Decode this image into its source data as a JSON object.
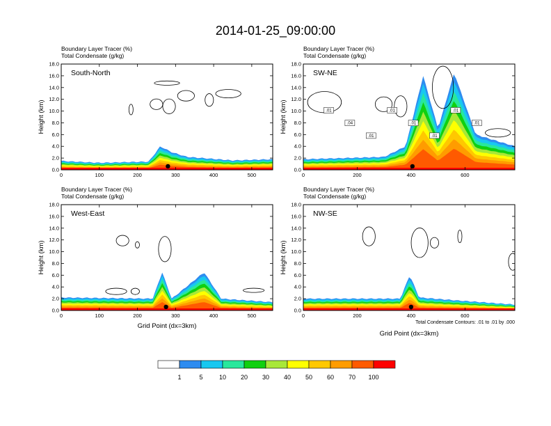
{
  "title": "2014-01-25_09:00:00",
  "panel_subtitles": [
    "Boundary Layer Tracer   (%)",
    "Total Condensate   (g/kg)"
  ],
  "ylabel": "Height (km)",
  "xlabel": "Grid Point (dx=3km)",
  "contour_note": "Total Condensate Contours: .01 to .01 by .000",
  "colorbar": {
    "labels": [
      "1",
      "5",
      "10",
      "20",
      "30",
      "40",
      "50",
      "60",
      "70",
      "100"
    ],
    "colors": [
      "#ffffff",
      "#2e8cf0",
      "#18c8f0",
      "#28e89c",
      "#10d010",
      "#a8e838",
      "#ffff00",
      "#ffc800",
      "#ff9c00",
      "#ff5a00",
      "#ff0000"
    ]
  },
  "chart_data": [
    {
      "type": "heatmap",
      "panel": "South-North",
      "title": "South-North",
      "ylim": [
        0,
        18
      ],
      "xlim": [
        0,
        555
      ],
      "xticks": [
        0,
        100,
        200,
        300,
        400,
        500
      ],
      "yticks": [
        "0.0",
        "2.0",
        "4.0",
        "6.0",
        "8.0",
        "10.0",
        "12.0",
        "14.0",
        "16.0",
        "18.0"
      ],
      "marker_x": 280,
      "tracer_profile": [
        {
          "x": 0,
          "top_km": 1.5
        },
        {
          "x": 100,
          "top_km": 1.2
        },
        {
          "x": 230,
          "top_km": 1.4
        },
        {
          "x": 260,
          "top_km": 4.0
        },
        {
          "x": 290,
          "top_km": 3.0
        },
        {
          "x": 330,
          "top_km": 2.2
        },
        {
          "x": 450,
          "top_km": 1.6
        },
        {
          "x": 555,
          "top_km": 1.8
        }
      ],
      "contour_labels": []
    },
    {
      "type": "heatmap",
      "panel": "SW-NE",
      "title": "SW-NE",
      "ylim": [
        0,
        18
      ],
      "xlim": [
        0,
        785
      ],
      "xticks": [
        0,
        200,
        400,
        600
      ],
      "yticks": [
        "0.0",
        "2.0",
        "4.0",
        "6.0",
        "8.0",
        "10.0",
        "12.0",
        "14.0",
        "16.0",
        "18.0"
      ],
      "marker_x": 405,
      "tracer_profile": [
        {
          "x": 0,
          "top_km": 1.8
        },
        {
          "x": 300,
          "top_km": 2.2
        },
        {
          "x": 380,
          "top_km": 4.0
        },
        {
          "x": 445,
          "top_km": 16.0
        },
        {
          "x": 500,
          "top_km": 7.0
        },
        {
          "x": 560,
          "top_km": 16.5
        },
        {
          "x": 640,
          "top_km": 6.0
        },
        {
          "x": 785,
          "top_km": 4.0
        }
      ],
      "contour_labels": [
        ".01",
        ".04",
        ".01",
        ".01",
        ".01",
        ".01",
        ".01",
        ".01"
      ]
    },
    {
      "type": "heatmap",
      "panel": "West-East",
      "title": "West-East",
      "ylim": [
        0,
        18
      ],
      "xlim": [
        0,
        555
      ],
      "xticks": [
        0,
        100,
        200,
        300,
        400,
        500
      ],
      "yticks": [
        "0.0",
        "2.0",
        "4.0",
        "6.0",
        "8.0",
        "10.0",
        "12.0",
        "14.0",
        "16.0",
        "18.0"
      ],
      "marker_x": 275,
      "tracer_profile": [
        {
          "x": 0,
          "top_km": 2.2
        },
        {
          "x": 240,
          "top_km": 2.0
        },
        {
          "x": 265,
          "top_km": 6.5
        },
        {
          "x": 290,
          "top_km": 2.0
        },
        {
          "x": 375,
          "top_km": 6.5
        },
        {
          "x": 420,
          "top_km": 2.0
        },
        {
          "x": 555,
          "top_km": 1.4
        }
      ],
      "contour_labels": []
    },
    {
      "type": "heatmap",
      "panel": "NW-SE",
      "title": "NW-SE",
      "ylim": [
        0,
        18
      ],
      "xlim": [
        0,
        785
      ],
      "xticks": [
        0,
        200,
        400,
        600
      ],
      "yticks": [
        "0.0",
        "2.0",
        "4.0",
        "6.0",
        "8.0",
        "10.0",
        "12.0",
        "14.0",
        "16.0",
        "18.0"
      ],
      "marker_x": 400,
      "tracer_profile": [
        {
          "x": 0,
          "top_km": 2.0
        },
        {
          "x": 360,
          "top_km": 2.0
        },
        {
          "x": 395,
          "top_km": 6.0
        },
        {
          "x": 430,
          "top_km": 2.2
        },
        {
          "x": 600,
          "top_km": 1.6
        },
        {
          "x": 785,
          "top_km": 1.0
        }
      ],
      "contour_labels": []
    }
  ]
}
